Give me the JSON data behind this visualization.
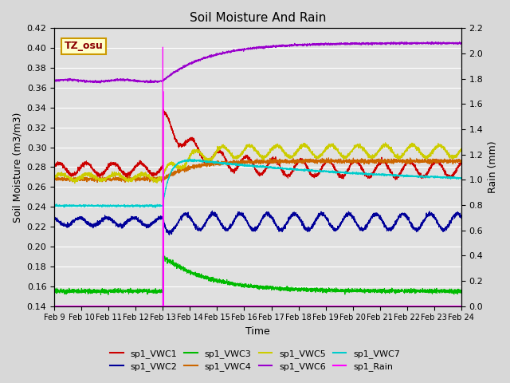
{
  "title": "Soil Moisture And Rain",
  "xlabel": "Time",
  "ylabel_left": "Soil Moisture (m3/m3)",
  "ylabel_right": "Rain (mm)",
  "station_label": "TZ_osu",
  "ylim_left": [
    0.14,
    0.42
  ],
  "ylim_right": [
    0.0,
    2.2
  ],
  "yticks_left": [
    0.14,
    0.16,
    0.18,
    0.2,
    0.22,
    0.24,
    0.26,
    0.28,
    0.3,
    0.32,
    0.34,
    0.36,
    0.38,
    0.4,
    0.42
  ],
  "yticks_right": [
    0.0,
    0.2,
    0.4,
    0.6,
    0.8,
    1.0,
    1.2,
    1.4,
    1.6,
    1.8,
    2.0,
    2.2
  ],
  "date_labels": [
    "Feb 9",
    "Feb 10",
    "Feb 11",
    "Feb 12",
    "Feb 13",
    "Feb 14",
    "Feb 15",
    "Feb 16",
    "Feb 17",
    "Feb 18",
    "Feb 19",
    "Feb 20",
    "Feb 21",
    "Feb 22",
    "Feb 23",
    "Feb 24"
  ],
  "colors": {
    "sp1_VWC1": "#cc0000",
    "sp1_VWC2": "#000099",
    "sp1_VWC3": "#00bb00",
    "sp1_VWC4": "#cc6600",
    "sp1_VWC5": "#cccc00",
    "sp1_VWC6": "#9900cc",
    "sp1_VWC7": "#00cccc",
    "sp1_Rain": "#ff00ff"
  },
  "background_color": "#e0e0e0",
  "fig_facecolor": "#d8d8d8"
}
